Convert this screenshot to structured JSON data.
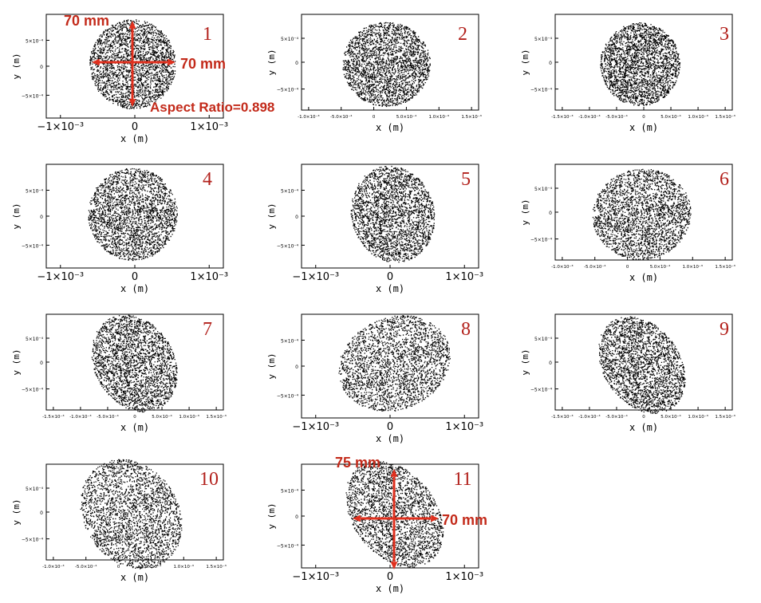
{
  "chart_data": [
    {
      "type": "scatter",
      "panel": "1",
      "xlabel": "x (m)",
      "ylabel": "y (m)",
      "xticks": [
        "−1×10⁻³",
        "0",
        "1×10⁻³"
      ],
      "yticks": [
        "5×10⁻⁴",
        "0",
        "−5×10⁻⁴"
      ],
      "ellipse": {
        "width_mm": 70,
        "height_mm": 70,
        "tilt_deg": 0
      },
      "annotations": [
        "70 mm",
        "70 mm",
        "Aspect Ratio=0.898"
      ]
    },
    {
      "type": "scatter",
      "panel": "2",
      "xlabel": "x (m)",
      "ylabel": "y (m)",
      "xticks": [
        "-1.0×10⁻³",
        "-5.0×10⁻⁴",
        "0",
        "5.0×10⁻⁴",
        "1.0×10⁻³",
        "1.5×10⁻³"
      ],
      "yticks": [
        "5×10⁻⁴",
        "0",
        "−5×10⁻⁴"
      ],
      "ellipse": {
        "tilt_deg": 0
      }
    },
    {
      "type": "scatter",
      "panel": "3",
      "xlabel": "x (m)",
      "ylabel": "y (m)",
      "xticks": [
        "-1.5×10⁻³",
        "-1.0×10⁻³",
        "-5.0×10⁻⁴",
        "0",
        "5.0×10⁻⁴",
        "1.0×10⁻³",
        "1.5×10⁻³"
      ],
      "yticks": [
        "5×10⁻⁴",
        "0",
        "−5×10⁻⁴"
      ],
      "ellipse": {
        "tilt_deg": 0
      }
    },
    {
      "type": "scatter",
      "panel": "4",
      "xlabel": "x (m)",
      "ylabel": "y (m)",
      "xticks": [
        "−1×10⁻³",
        "0",
        "1×10⁻³"
      ],
      "yticks": [
        "5×10⁻⁴",
        "0",
        "−5×10⁻⁴"
      ],
      "ellipse": {
        "tilt_deg": 0
      }
    },
    {
      "type": "scatter",
      "panel": "5",
      "xlabel": "x (m)",
      "ylabel": "y (m)",
      "xticks": [
        "−1×10⁻³",
        "0",
        "1×10⁻³"
      ],
      "yticks": [
        "5×10⁻⁴",
        "0",
        "−5×10⁻⁴"
      ],
      "ellipse": {
        "tilt_deg": -15
      }
    },
    {
      "type": "scatter",
      "panel": "6",
      "xlabel": "x (m)",
      "ylabel": "y (m)",
      "xticks": [
        "-1.0×10⁻³",
        "-5.0×10⁻⁴",
        "0",
        "5.0×10⁻⁴",
        "1.0×10⁻³",
        "1.5×10⁻³"
      ],
      "yticks": [
        "5×10⁻⁴",
        "0",
        "−5×10⁻⁴"
      ],
      "ellipse": {
        "tilt_deg": -8
      }
    },
    {
      "type": "scatter",
      "panel": "7",
      "xlabel": "x (m)",
      "ylabel": "y (m)",
      "xticks": [
        "-1.5×10⁻³",
        "-1.0×10⁻³",
        "-5.0×10⁻⁴",
        "0",
        "5.0×10⁻⁴",
        "1.0×10⁻³",
        "1.5×10⁻³"
      ],
      "yticks": [
        "5×10⁻⁴",
        "0",
        "−5×10⁻⁴"
      ],
      "ellipse": {
        "tilt_deg": -30
      }
    },
    {
      "type": "scatter",
      "panel": "8",
      "xlabel": "x (m)",
      "ylabel": "y (m)",
      "xticks": [
        "−1×10⁻³",
        "0",
        "1×10⁻³"
      ],
      "yticks": [
        "5×10⁻⁴",
        "0",
        "−5×10⁻⁴"
      ],
      "ellipse": {
        "tilt_deg": -22
      }
    },
    {
      "type": "scatter",
      "panel": "9",
      "xlabel": "x (m)",
      "ylabel": "y (m)",
      "xticks": [
        "-1.5×10⁻³",
        "-1.0×10⁻³",
        "-5.0×10⁻⁴",
        "0",
        "5.0×10⁻⁴",
        "1.0×10⁻³",
        "1.5×10⁻³"
      ],
      "yticks": [
        "5×10⁻⁴",
        "0",
        "−5×10⁻⁴"
      ],
      "ellipse": {
        "tilt_deg": -35
      }
    },
    {
      "type": "scatter",
      "panel": "10",
      "xlabel": "x (m)",
      "ylabel": "y (m)",
      "xticks": [
        "-1.0×10⁻³",
        "-5.0×10⁻⁴",
        "0",
        "5.0×10⁻⁴",
        "1.0×10⁻³",
        "1.5×10⁻³"
      ],
      "yticks": [
        "5×10⁻⁴",
        "0",
        "−5×10⁻⁴"
      ],
      "ellipse": {
        "tilt_deg": -35
      }
    },
    {
      "type": "scatter",
      "panel": "11",
      "xlabel": "x (m)",
      "ylabel": "y (m)",
      "xticks": [
        "−1×10⁻³",
        "0",
        "1×10⁻³"
      ],
      "yticks": [
        "5×10⁻⁴",
        "0",
        "−5×10⁻⁴"
      ],
      "ellipse": {
        "width_mm": 70,
        "height_mm": 75,
        "tilt_deg": -38
      },
      "annotations": [
        "75 mm",
        "70 mm"
      ]
    }
  ],
  "colors": {
    "label_red": "#b2201b",
    "annotation_red": "#c32a1a",
    "arrow_red": "#e0301e",
    "points": "#000000"
  }
}
